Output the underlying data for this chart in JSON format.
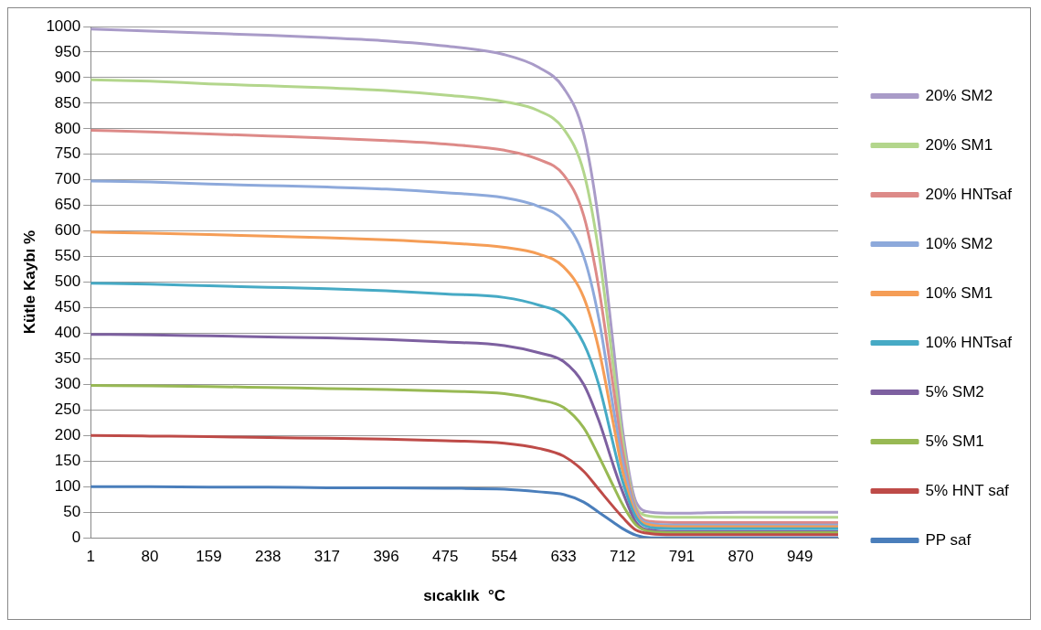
{
  "chart_data": {
    "type": "line",
    "xlabel": "sıcaklık  °C",
    "ylabel": "Kütle Kaybı %",
    "xlim": [
      1,
      1000
    ],
    "xticks": [
      1,
      80,
      159,
      238,
      317,
      396,
      475,
      554,
      633,
      712,
      791,
      870,
      949
    ],
    "ylim": [
      0,
      1000
    ],
    "yticks": [
      0,
      50,
      100,
      150,
      200,
      250,
      300,
      350,
      400,
      450,
      500,
      550,
      600,
      650,
      700,
      750,
      800,
      850,
      900,
      950,
      1000
    ],
    "grid": "y",
    "legend": "right",
    "marker": "none",
    "line_style": "solid",
    "x": [
      1,
      80,
      159,
      238,
      317,
      396,
      475,
      554,
      600,
      633,
      660,
      680,
      700,
      712,
      730,
      750,
      780,
      870,
      1000
    ],
    "series": [
      {
        "name": "PP saf",
        "color": "#4a7ebb",
        "values": [
          100,
          100,
          99,
          99,
          98,
          98,
          97,
          95,
          90,
          85,
          70,
          50,
          30,
          18,
          5,
          0,
          0,
          0,
          0
        ]
      },
      {
        "name": "5% HNT saf",
        "color": "#be4b48",
        "values": [
          200,
          199,
          198,
          196,
          195,
          193,
          190,
          185,
          175,
          160,
          130,
          95,
          60,
          40,
          15,
          8,
          6,
          6,
          6
        ]
      },
      {
        "name": "5% SM1",
        "color": "#98b954",
        "values": [
          298,
          297,
          296,
          294,
          292,
          290,
          287,
          282,
          270,
          255,
          215,
          160,
          100,
          65,
          25,
          12,
          10,
          10,
          10
        ]
      },
      {
        "name": "5% SM2",
        "color": "#7d60a0",
        "values": [
          398,
          397,
          395,
          393,
          391,
          388,
          383,
          376,
          362,
          345,
          300,
          230,
          140,
          90,
          30,
          15,
          12,
          12,
          12
        ]
      },
      {
        "name": "10% HNTsaf",
        "color": "#46aac5",
        "values": [
          498,
          496,
          493,
          490,
          487,
          483,
          477,
          470,
          455,
          435,
          380,
          300,
          180,
          110,
          40,
          20,
          18,
          18,
          18
        ]
      },
      {
        "name": "10% SM1",
        "color": "#f59d56",
        "values": [
          598,
          596,
          593,
          590,
          587,
          583,
          577,
          568,
          555,
          530,
          470,
          370,
          220,
          130,
          45,
          25,
          22,
          22,
          22
        ]
      },
      {
        "name": "10% SM2",
        "color": "#8da9db",
        "values": [
          698,
          696,
          692,
          689,
          686,
          682,
          675,
          665,
          648,
          620,
          550,
          430,
          250,
          150,
          50,
          28,
          25,
          25,
          25
        ]
      },
      {
        "name": "20% HNTsaf",
        "color": "#dd8a88",
        "values": [
          797,
          794,
          790,
          786,
          782,
          777,
          770,
          758,
          740,
          710,
          630,
          490,
          290,
          170,
          55,
          32,
          30,
          30,
          30
        ]
      },
      {
        "name": "20% SM1",
        "color": "#b3d68c",
        "values": [
          896,
          893,
          888,
          884,
          880,
          875,
          866,
          853,
          835,
          800,
          715,
          560,
          330,
          190,
          60,
          42,
          40,
          40,
          40
        ]
      },
      {
        "name": "20% SM2",
        "color": "#a99bc8",
        "values": [
          995,
          991,
          987,
          983,
          978,
          972,
          962,
          945,
          920,
          880,
          790,
          620,
          370,
          210,
          70,
          50,
          48,
          50,
          50
        ]
      }
    ]
  }
}
